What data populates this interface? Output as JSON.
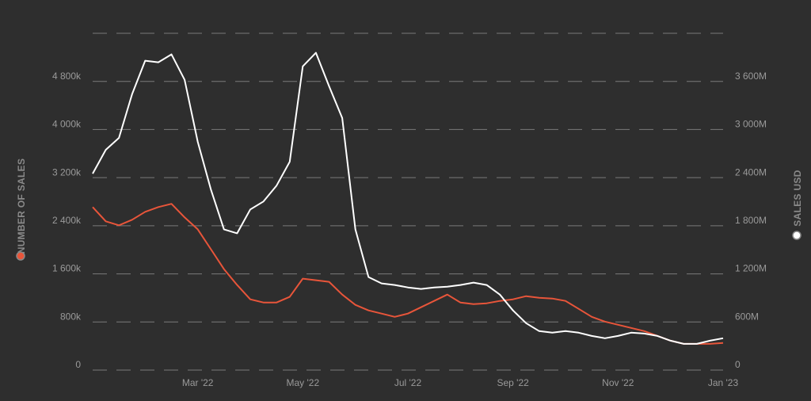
{
  "chart_data": {
    "type": "line",
    "y_label": "NUMBER OF SALES",
    "y2_label": "SALES USD",
    "categories": [
      null,
      null,
      null,
      null,
      null,
      null,
      null,
      null,
      "Mar '22",
      null,
      null,
      null,
      null,
      null,
      null,
      null,
      "May '22",
      null,
      null,
      null,
      null,
      null,
      null,
      null,
      "Jul '22",
      null,
      null,
      null,
      null,
      null,
      null,
      null,
      "Sep '22",
      null,
      null,
      null,
      null,
      null,
      null,
      null,
      "Nov '22",
      null,
      null,
      null,
      null,
      null,
      null,
      null,
      "Jan '23"
    ],
    "series": [
      {
        "name": "NUMBER OF SALES",
        "color": "#e8553a",
        "axis": "y",
        "values": [
          2711000,
          2473000,
          2407000,
          2499000,
          2631000,
          2711000,
          2764000,
          2539000,
          2340000,
          2010000,
          1679000,
          1415000,
          1177000,
          1124000,
          1124000,
          1217000,
          1521000,
          1494000,
          1468000,
          1256000,
          1084000,
          992000,
          939000,
          886000,
          939000,
          1045000,
          1150000,
          1256000,
          1124000,
          1098000,
          1111000,
          1150000,
          1177000,
          1230000,
          1203000,
          1190000,
          1150000,
          1018000,
          886000,
          807000,
          754000,
          701000,
          648000,
          569000,
          489000,
          436000,
          436000,
          436000,
          450000
        ]
      },
      {
        "name": "SALES USD",
        "color": "#ffffff",
        "axis": "y2",
        "values": [
          2450000000,
          2747000000,
          2896000000,
          3441000000,
          3858000000,
          3838000000,
          3937000000,
          3620000000,
          2846000000,
          2251000000,
          1755000000,
          1706000000,
          2003000000,
          2102000000,
          2301000000,
          2598000000,
          3788000000,
          3957000000,
          3540000000,
          3144000000,
          1755000000,
          1160000000,
          1081000000,
          1061000000,
          1031000000,
          1012000000,
          1031000000,
          1041000000,
          1061000000,
          1091000000,
          1061000000,
          942000000,
          744000000,
          585000000,
          486000000,
          466000000,
          486000000,
          466000000,
          426000000,
          397000000,
          426000000,
          466000000,
          456000000,
          426000000,
          367000000,
          327000000,
          327000000,
          367000000,
          397000000
        ]
      }
    ],
    "ylim": [
      0,
      5600000
    ],
    "yticks": [
      0,
      {
        "value": 800000,
        "label": "800k"
      },
      {
        "value": 1600000,
        "label": "1 600k"
      },
      {
        "value": 2400000,
        "label": "2 400k"
      },
      {
        "value": 3200000,
        "label": "3 200k"
      },
      {
        "value": 4000000,
        "label": "4 000k"
      },
      {
        "value": 4800000,
        "label": "4 800k"
      }
    ],
    "y2lim": [
      0,
      4200000000
    ],
    "y2ticks": [
      0,
      {
        "value": 600000000,
        "label": "600M"
      },
      {
        "value": 1200000000,
        "label": "1 200M"
      },
      {
        "value": 1800000000,
        "label": "1 800M"
      },
      {
        "value": 2400000000,
        "label": "2 400M"
      },
      {
        "value": 3000000000,
        "label": "3 000M"
      },
      {
        "value": 3600000000,
        "label": "3 600M"
      }
    ],
    "grid": true
  }
}
